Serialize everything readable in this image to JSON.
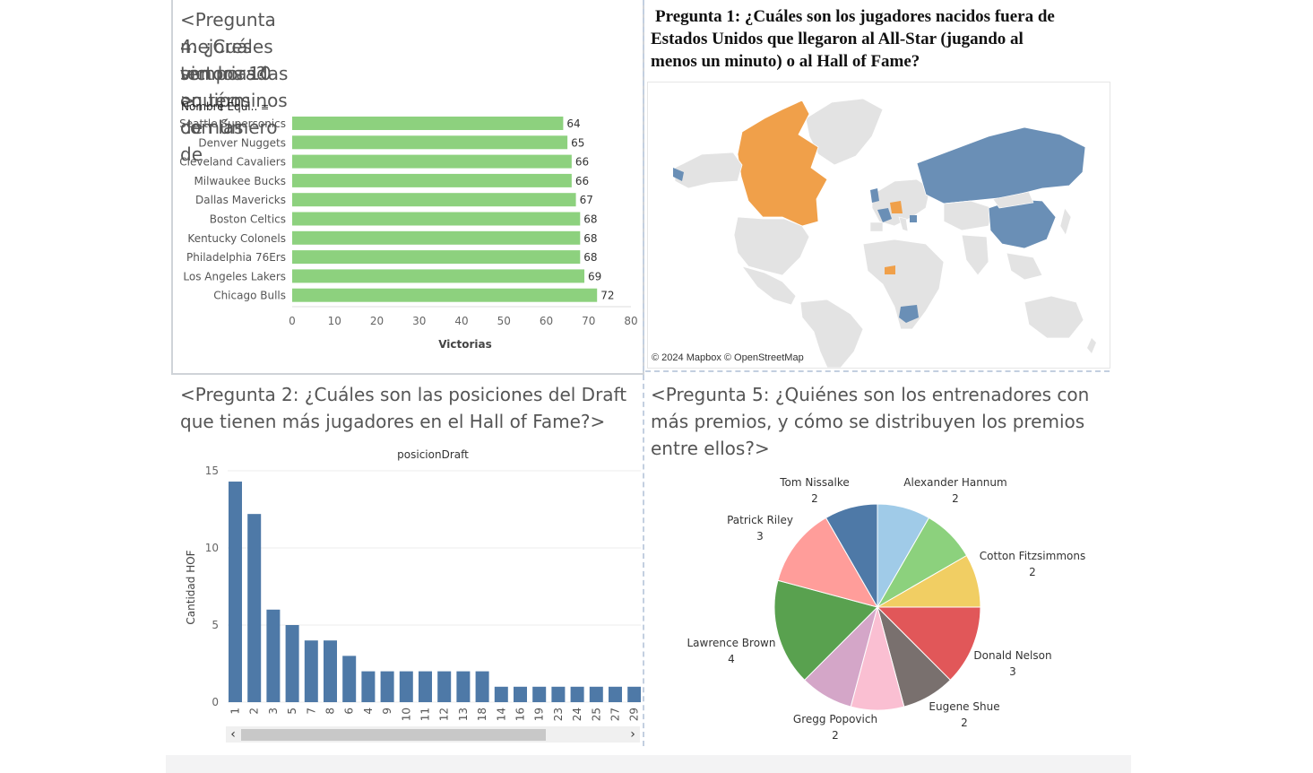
{
  "panels": {
    "q4": {
      "title": "<Pregunta 4: ¿Cuáles son los 10 equipos con las mejores temporadas en términos de número de victorias?>",
      "title_lines": [
        "<Pregunta 4: ¿Cuáles son los 10 equipos con las",
        "mejores temporadas en términos de número de",
        "victorias?>"
      ]
    },
    "q1": {
      "title_lines": [
        "Pregunta 1: ¿Cuáles son los jugadores nacidos fuera de",
        "Estados Unidos que llegaron al All-Star (jugando al",
        "menos un minuto) o al Hall of Fame?"
      ],
      "map_credit": "© 2024 Mapbox © OpenStreetMap",
      "highlight_colors": {
        "blue": "#6a8fb6",
        "orange": "#f0a04a",
        "land": "#e3e3e3"
      }
    },
    "q2": {
      "title_lines": [
        "<Pregunta 2: ¿Cuáles son las posiciones del Draft",
        "que tienen más jugadores en el Hall of Fame?>"
      ]
    },
    "q5": {
      "title_lines": [
        "<Pregunta 5: ¿Quiénes son los entrenadores con",
        "más premios, y cómo se distribuyen los premios",
        "entre ellos?>"
      ]
    }
  },
  "chart_data": [
    {
      "id": "q4",
      "type": "bar",
      "orientation": "horizontal",
      "field_header": "Nombre Equi..",
      "categories": [
        "Seattle Supersonics",
        "Denver Nuggets",
        "Cleveland Cavaliers",
        "Milwaukee Bucks",
        "Dallas Mavericks",
        "Boston Celtics",
        "Kentucky Colonels",
        "Philadelphia 76Ers",
        "Los Angeles Lakers",
        "Chicago Bulls"
      ],
      "values": [
        64,
        65,
        66,
        66,
        67,
        68,
        68,
        68,
        69,
        72
      ],
      "xlabel": "Victorias",
      "xlim": [
        0,
        80
      ],
      "xticks": [
        0,
        10,
        20,
        30,
        40,
        50,
        60,
        70,
        80
      ],
      "color": "#8dd17e"
    },
    {
      "id": "q2",
      "type": "bar",
      "title": "posicionDraft",
      "ylabel": "Cantidad HOF",
      "ylim": [
        0,
        15
      ],
      "yticks": [
        0,
        5,
        10,
        15
      ],
      "categories": [
        "1",
        "2",
        "3",
        "5",
        "7",
        "8",
        "6",
        "4",
        "9",
        "10",
        "11",
        "12",
        "13",
        "18",
        "14",
        "16",
        "19",
        "23",
        "24",
        "25",
        "27",
        "29"
      ],
      "values": [
        14.3,
        12.2,
        6,
        5,
        4,
        4,
        3,
        2,
        2,
        2,
        2,
        2,
        2,
        2,
        1,
        1,
        1,
        1,
        1,
        1,
        1,
        1
      ],
      "color": "#4e79a7"
    },
    {
      "id": "q5",
      "type": "pie",
      "slices": [
        {
          "name": "Alexander Hannum",
          "value": 2,
          "color": "#a0cbe8"
        },
        {
          "name": "Cotton Fitzsimmons",
          "value": 2,
          "color": "#8cd17d"
        },
        {
          "name": "Cotton Fitzsimmons_b",
          "value": 2,
          "color": "#f1ce63"
        },
        {
          "name": "Donald Nelson",
          "value": 3,
          "color": "#e15759"
        },
        {
          "name": "Eugene Shue",
          "value": 2,
          "color": "#79706e"
        },
        {
          "name": "Gregg Popovich",
          "value": 2,
          "color": "#fabfd2"
        },
        {
          "name": "Gregg Popovich_b",
          "value": 2,
          "color": "#d4a6c8"
        },
        {
          "name": "Lawrence Brown",
          "value": 4,
          "color": "#59a14f"
        },
        {
          "name": "Patrick Riley",
          "value": 3,
          "color": "#ff9d9a"
        },
        {
          "name": "Tom Nissalke",
          "value": 2,
          "color": "#4e79a7"
        }
      ],
      "labels": [
        {
          "name": "Tom Nissalke",
          "value": "2"
        },
        {
          "name": "Alexander Hannum",
          "value": "2"
        },
        {
          "name": "Patrick Riley",
          "value": "3"
        },
        {
          "name": "Cotton Fitzsimmons",
          "value": "2"
        },
        {
          "name": "Lawrence Brown",
          "value": "4"
        },
        {
          "name": "Donald Nelson",
          "value": "3"
        },
        {
          "name": "Eugene Shue",
          "value": "2"
        },
        {
          "name": "Gregg Popovich",
          "value": "2"
        }
      ]
    }
  ]
}
